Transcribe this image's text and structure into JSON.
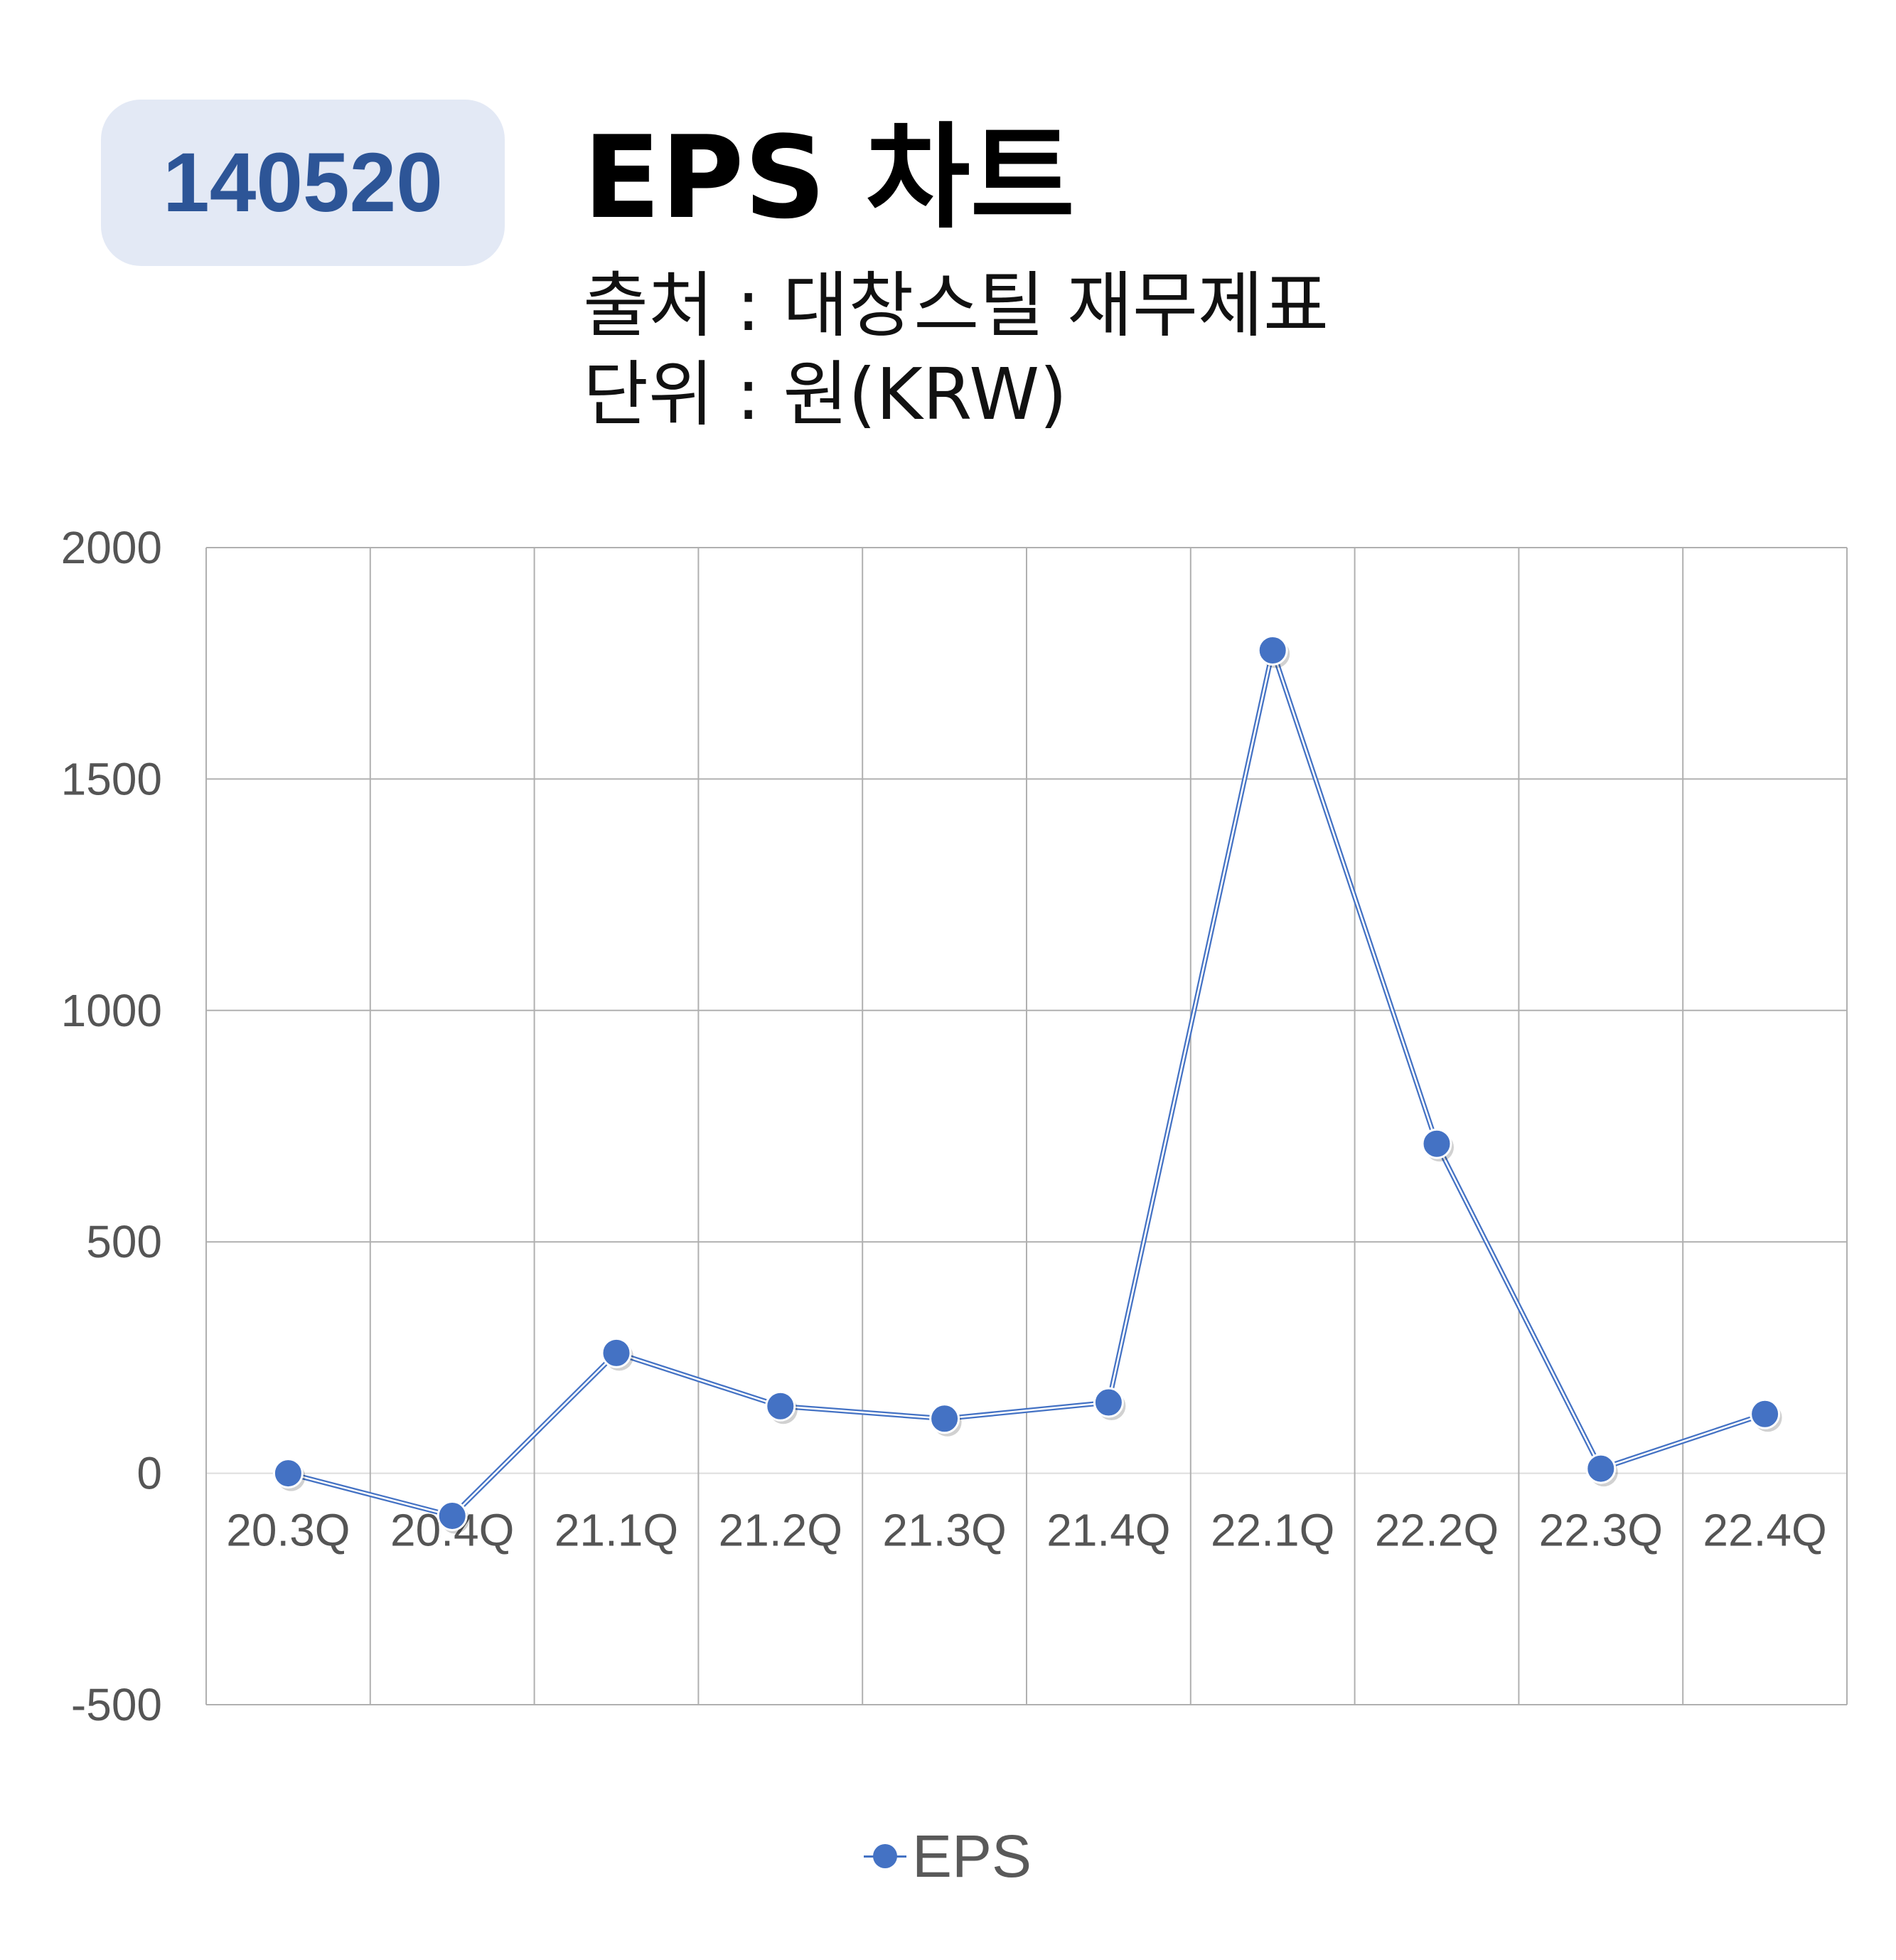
{
  "header": {
    "ticker": "140520",
    "title": "EPS 차트",
    "source": "출처 : 대창스틸 재무제표",
    "unit": "단위 : 원(KRW)"
  },
  "chart_data": {
    "type": "line",
    "categories": [
      "20.3Q",
      "20.4Q",
      "21.1Q",
      "21.2Q",
      "21.3Q",
      "21.4Q",
      "22.1Q",
      "22.2Q",
      "22.3Q",
      "22.4Q"
    ],
    "series": [
      {
        "name": "EPS",
        "values": [
          0,
          -92,
          260,
          145,
          118,
          153,
          1778,
          712,
          10,
          128
        ]
      }
    ],
    "ylim": [
      -500,
      2000
    ],
    "yticks": [
      2000,
      1500,
      1000,
      500,
      0,
      -500
    ],
    "grid": true,
    "legend_position": "bottom",
    "colors": {
      "line": "#4472c4",
      "marker": "#4472c4",
      "grid": "#b0b0b0",
      "axis_label": "#555555"
    }
  }
}
